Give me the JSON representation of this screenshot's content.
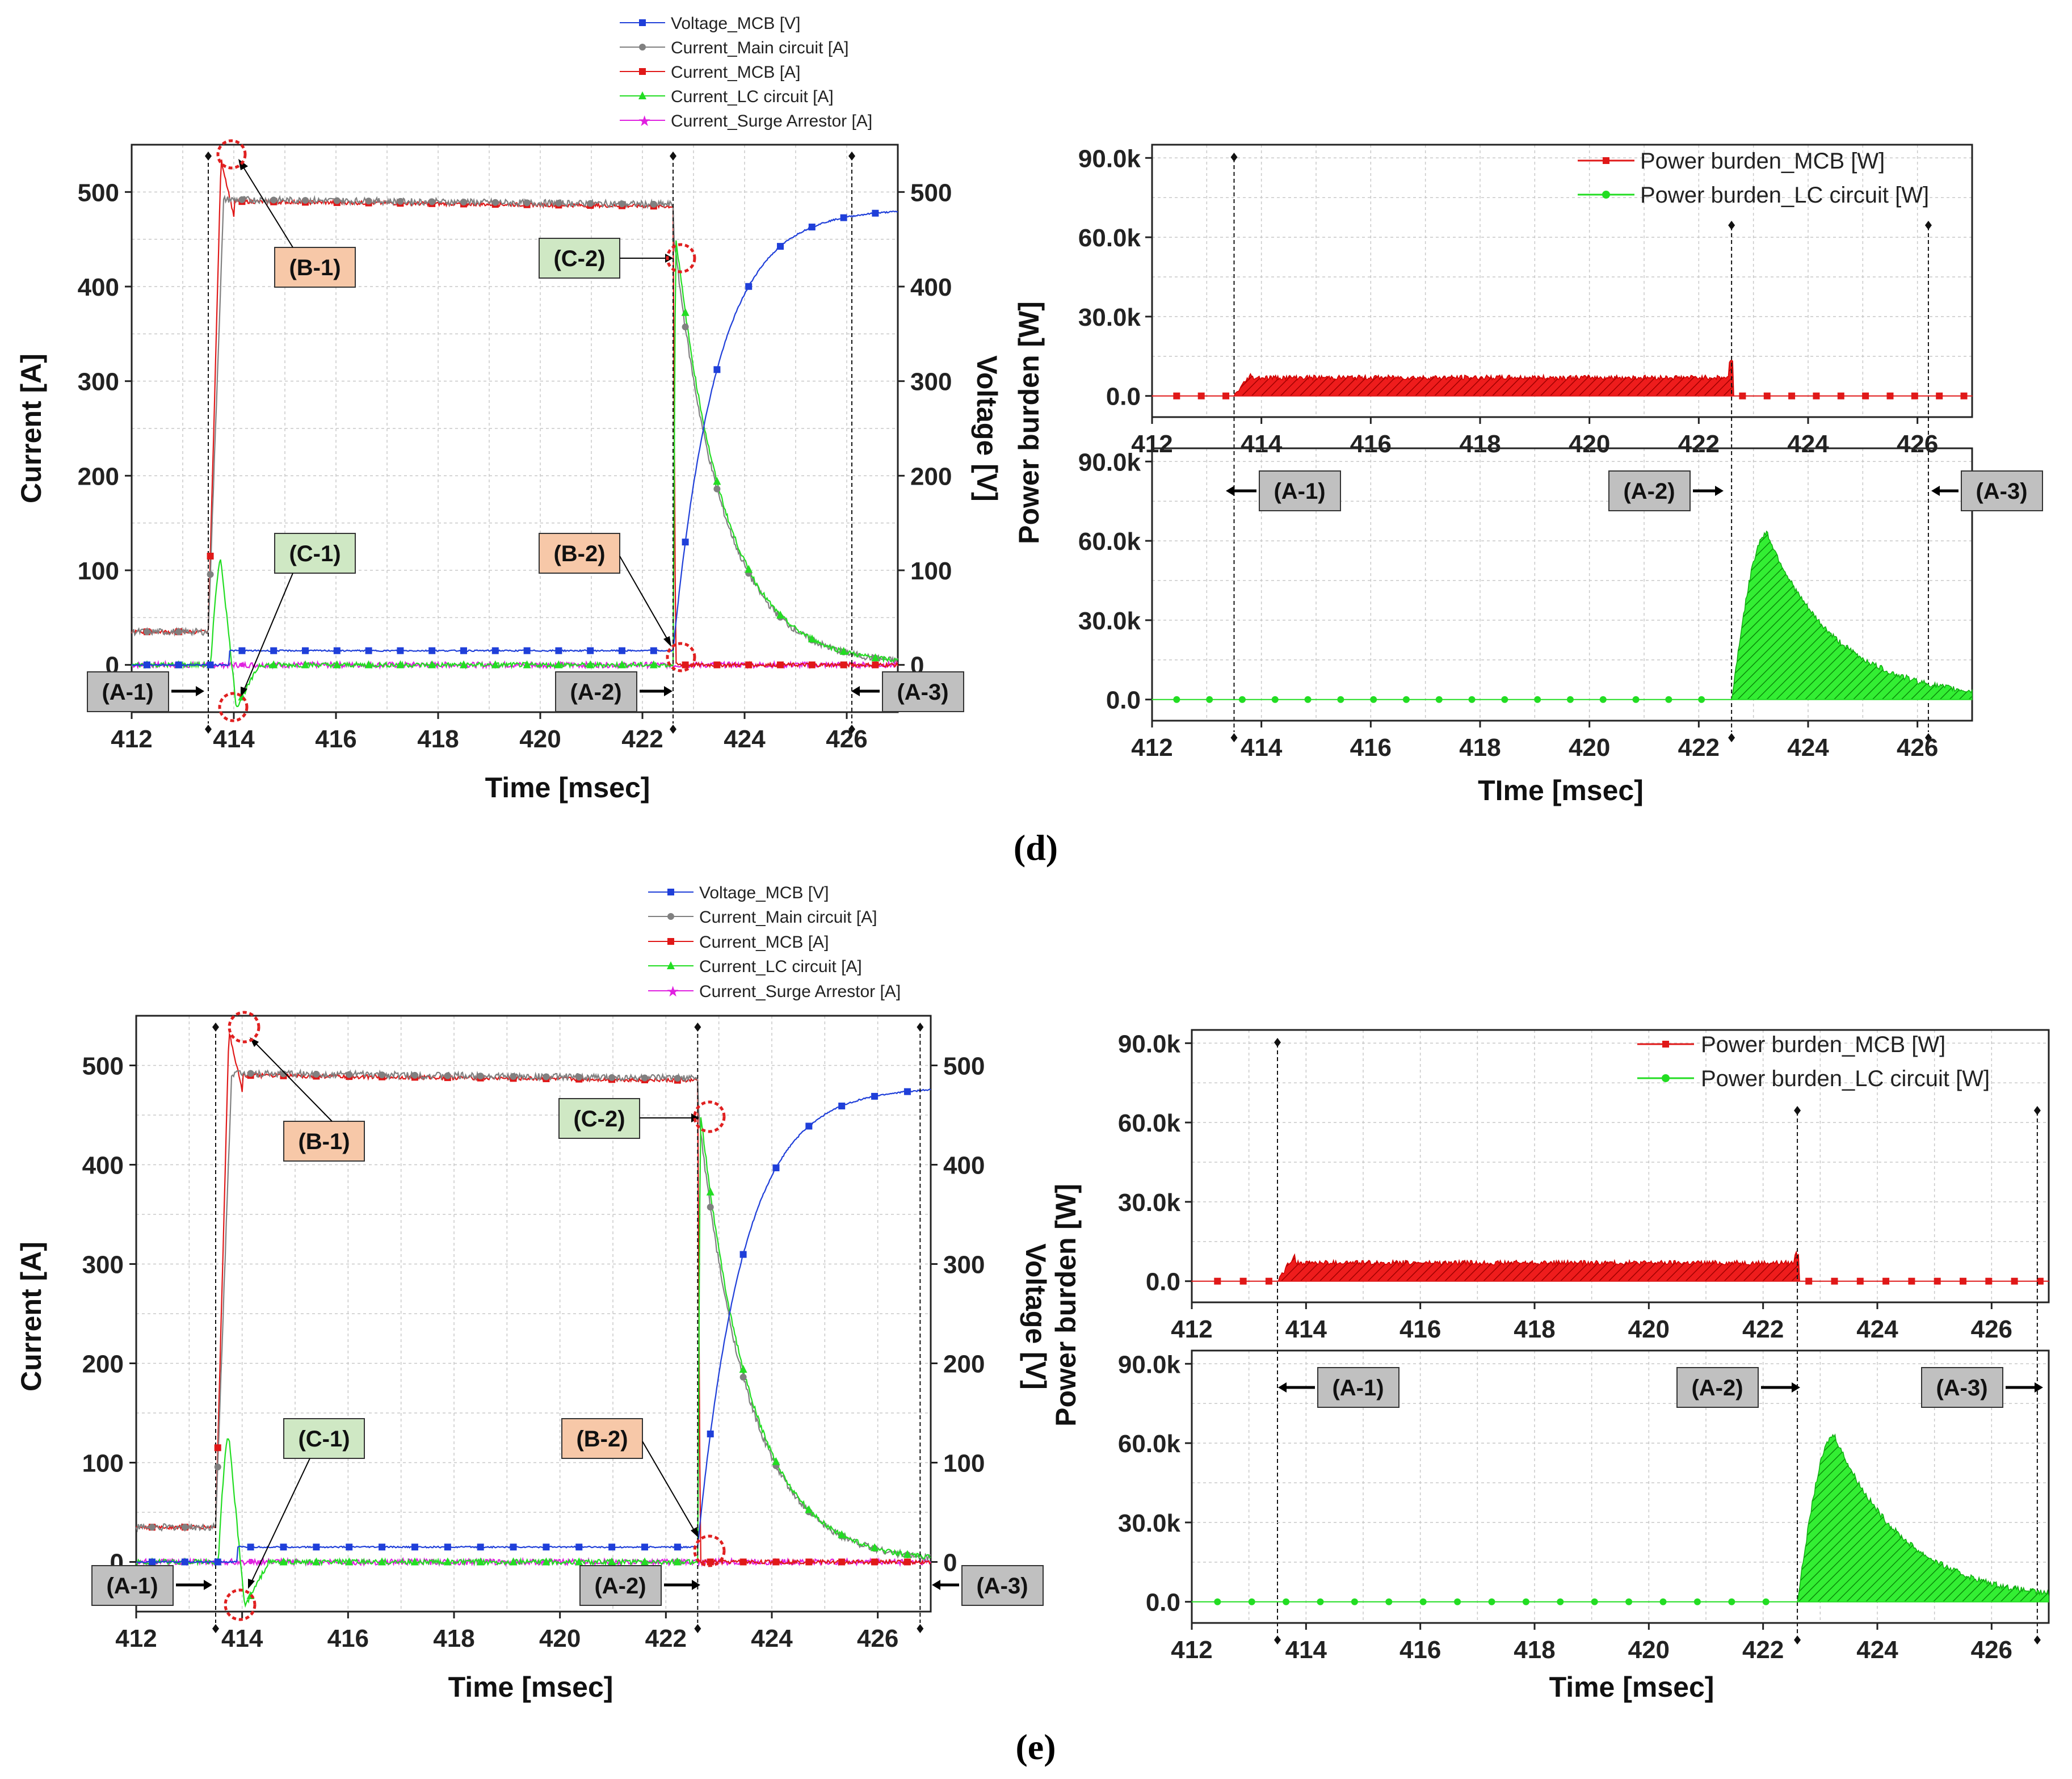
{
  "figure": {
    "caption_d": "(d)",
    "caption_e": "(e)"
  },
  "colors": {
    "voltage": "#1f3fd9",
    "main": "#808080",
    "mcb": "#e01818",
    "lc": "#22dd22",
    "surge": "#e020e0",
    "box_gray": "#c0c0c0",
    "box_orange": "#f7c8a8",
    "box_green": "#cfe8c4",
    "circle": "#e02020"
  },
  "chart_data": [
    {
      "id": "d-current",
      "type": "line",
      "title": "",
      "xlabel": "Time [msec]",
      "ylabel": "Current [A]",
      "ylabel_right": "Voltage [V]",
      "xlim": [
        412,
        427
      ],
      "ylim": [
        -50,
        550
      ],
      "xticks": [
        412,
        414,
        416,
        418,
        420,
        422,
        424,
        426
      ],
      "yticks": [
        0,
        100,
        200,
        300,
        400,
        500
      ],
      "x_a1": 413.5,
      "x_a2": 422.6,
      "x_a3": 426.1,
      "legend": [
        "Voltage_MCB [V]",
        "Current_Main circuit [A]",
        "Current_MCB [A]",
        "Current_LC circuit [A]",
        "Current_Surge Arrestor [A]"
      ],
      "series_values": {
        "current_mcb": "35 A until 413.5 ms, peak ~545 A at 413.9 ms, ~490 A plateau, drop to 0 at 422.6 ms",
        "current_main": "~490 A plateau 414–422.6 ms, exponential decay to ~5 A by 426 ms",
        "current_lc": "spike ~110 A at 413.7 ms, dip to ~-50 A at 414 ms, ~0 A until 422.6 ms then ~450 A decaying",
        "voltage_mcb": "~0 V, ~15 V from 414 ms, rises from 422.6 ms to ~480 V at 427 ms",
        "current_surge": "~0 A"
      },
      "annotations": [
        "(A-1)",
        "(A-2)",
        "(A-3)",
        "(B-1)",
        "(B-2)",
        "(C-1)",
        "(C-2)"
      ]
    },
    {
      "id": "d-power",
      "type": "area",
      "xlabel": "TIme [msec]",
      "ylabel": "Power burden [W]",
      "xlim": [
        412,
        427
      ],
      "ylim_top": [
        -8000,
        95000
      ],
      "ylim_bottom": [
        -8000,
        95000
      ],
      "xticks": [
        412,
        414,
        416,
        418,
        420,
        422,
        424,
        426
      ],
      "yticks": [
        "0.0",
        "30.0k",
        "60.0k",
        "90.0k"
      ],
      "x_a1": 413.5,
      "x_a2": 422.6,
      "x_a3": 426.2,
      "legend": [
        "Power burden_MCB [W]",
        "Power burden_LC circuit [W]"
      ],
      "series_values": {
        "mcb_power": "~7k W from 413.5 to 422.6 ms, spike ~13k W at 422.6 ms",
        "lc_power": "0 W until 422.6 ms, peak ~63k W at 423.2 ms, decay to ~2k W by 427 ms"
      },
      "annotations": [
        "(A-1)",
        "(A-2)",
        "(A-3)"
      ]
    },
    {
      "id": "e-current",
      "type": "line",
      "xlabel": "Time [msec]",
      "ylabel": "Current [A]",
      "ylabel_right": "Voltage [V]",
      "xlim": [
        412,
        427
      ],
      "ylim": [
        -50,
        550
      ],
      "xticks": [
        412,
        414,
        416,
        418,
        420,
        422,
        424,
        426
      ],
      "yticks": [
        0,
        100,
        200,
        300,
        400,
        500
      ],
      "x_a1": 413.5,
      "x_a2": 422.6,
      "x_a3": 426.8,
      "legend": [
        "Voltage_MCB [V]",
        "Current_Main circuit [A]",
        "Current_MCB [A]",
        "Current_LC circuit [A]",
        "Current_Surge Arrestor [A]"
      ],
      "series_values": {
        "current_mcb": "35 A until 413.5 ms, peak ~545 A, ~490 A plateau, drop at 422.6 ms",
        "current_main": "~490 A plateau, decay after 422.6 ms to ~5 A",
        "current_lc": "spike ~125 A at 413.6 ms, dip ~-50 A at 414 ms, jump ~450 A at 422.6 ms then decay",
        "voltage_mcb": "~15 V plateau, rises from 422.6 ms to ~478 V",
        "current_surge": "~0 A"
      },
      "annotations": [
        "(A-1)",
        "(A-2)",
        "(A-3)",
        "(B-1)",
        "(B-2)",
        "(C-1)",
        "(C-2)"
      ]
    },
    {
      "id": "e-power",
      "type": "area",
      "xlabel": "Time [msec]",
      "ylabel": "Power burden [W]",
      "xlim": [
        412,
        427
      ],
      "xticks": [
        412,
        414,
        416,
        418,
        420,
        422,
        424,
        426
      ],
      "yticks": [
        "0.0",
        "30.0k",
        "60.0k",
        "90.0k"
      ],
      "x_a1": 413.5,
      "x_a2": 422.6,
      "x_a3": 426.8,
      "legend": [
        "Power burden_MCB [W]",
        "Power burden_LC circuit [W]"
      ],
      "series_values": {
        "mcb_power": "~7k W from 413.5 to 422.6 ms, peak ~10k W near 414 ms and 422.6 ms",
        "lc_power": "0 W until 422.6 ms, peak ~63k W at 423.3 ms, decay to ~3k W by 427 ms"
      },
      "annotations": [
        "(A-1)",
        "(A-2)",
        "(A-3)"
      ]
    }
  ],
  "labels": {
    "time_msec": "Time [msec]",
    "time_msec_d": "TIme [msec]",
    "current_a": "Current [A]",
    "voltage_v": "Voltage [V]",
    "power_w": "Power burden [W]",
    "a1": "(A-1)",
    "a2": "(A-2)",
    "a3": "(A-3)",
    "b1": "(B-1)",
    "b2": "(B-2)",
    "c1": "(C-1)",
    "c2": "(C-2)",
    "leg_voltage": "Voltage_MCB [V]",
    "leg_main": "Current_Main circuit [A]",
    "leg_mcb": "Current_MCB [A]",
    "leg_lc": "Current_LC circuit [A]",
    "leg_surge": "Current_Surge Arrestor [A]",
    "leg_pmcb": "Power burden_MCB [W]",
    "leg_plc": "Power burden_LC circuit [W]"
  }
}
